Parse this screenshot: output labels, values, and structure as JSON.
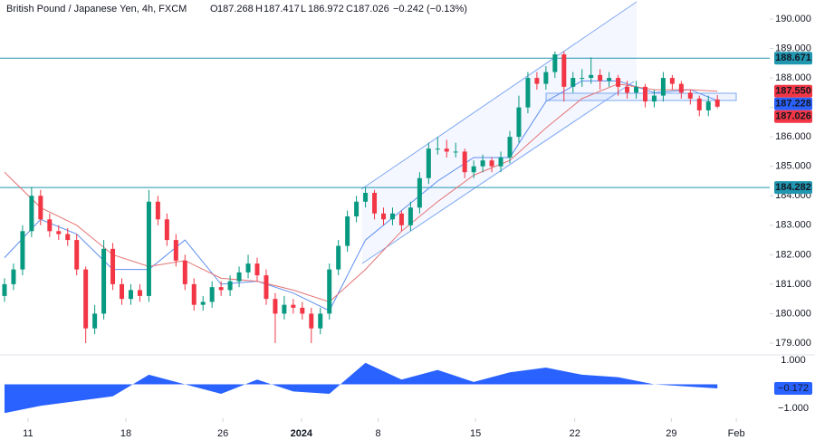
{
  "chart_data": {
    "type": "candlestick",
    "title": "British Pound / Japanese Yen, 4h, FXCM",
    "ohlc_letters": [
      "O",
      "H",
      "L",
      "C"
    ],
    "change": "−0.242 (−0.13%)",
    "up_color": "#089981",
    "down_color": "#f23645",
    "open": [
      180.6,
      181.0,
      181.5,
      182.8,
      184.0,
      183.2,
      182.8,
      182.7,
      182.5,
      181.5,
      179.5,
      180.0,
      182.2,
      181.0,
      180.5,
      180.8,
      180.6,
      183.8,
      183.2,
      182.5,
      181.8,
      181.0,
      180.3,
      180.4,
      180.9,
      180.8,
      181.1,
      181.4,
      181.7,
      181.3,
      180.5,
      180.0,
      180.3,
      180.2,
      180.0,
      179.5,
      180.0,
      181.5,
      182.3,
      183.3,
      183.8,
      184.1,
      183.4,
      183.2,
      183.4,
      183.0,
      183.6,
      184.6,
      185.6,
      185.6,
      185.5,
      185.5,
      184.8,
      185.0,
      185.2,
      185.0,
      185.3,
      186.0,
      187.0,
      188.0,
      187.8,
      188.2,
      188.8,
      187.7,
      188.0,
      188.0,
      188.1,
      187.9,
      188.0,
      187.7,
      187.5,
      187.7,
      187.2,
      187.4,
      188.0,
      187.8,
      187.5,
      187.3,
      186.9,
      187.268
    ],
    "high": [
      181.2,
      181.7,
      183.0,
      184.3,
      184.2,
      183.4,
      183.0,
      182.9,
      182.7,
      181.6,
      180.3,
      182.5,
      182.4,
      181.2,
      181.0,
      181.0,
      184.2,
      184.0,
      183.4,
      182.7,
      182.0,
      181.2,
      180.6,
      181.1,
      181.1,
      181.3,
      181.6,
      182.0,
      181.9,
      181.5,
      180.7,
      180.6,
      180.5,
      180.4,
      180.2,
      180.2,
      181.7,
      182.5,
      183.5,
      184.0,
      184.3,
      184.2,
      183.6,
      183.6,
      183.5,
      183.8,
      184.8,
      185.8,
      186.0,
      185.9,
      185.8,
      185.6,
      185.2,
      185.4,
      185.3,
      185.5,
      186.2,
      187.4,
      188.2,
      188.2,
      188.4,
      188.9,
      188.9,
      188.2,
      188.3,
      188.7,
      188.3,
      188.2,
      188.1,
      187.9,
      187.9,
      187.8,
      187.6,
      188.2,
      188.1,
      187.9,
      187.6,
      187.4,
      187.4,
      187.417
    ],
    "low": [
      180.4,
      180.8,
      181.3,
      182.6,
      183.0,
      182.6,
      182.5,
      182.3,
      181.3,
      179.0,
      179.3,
      179.8,
      180.8,
      180.3,
      180.3,
      180.4,
      180.4,
      183.0,
      182.3,
      181.6,
      180.8,
      180.1,
      180.1,
      180.2,
      180.6,
      180.6,
      180.9,
      181.2,
      181.1,
      180.3,
      179.0,
      179.8,
      180.0,
      179.8,
      179.0,
      179.3,
      179.8,
      181.3,
      182.1,
      183.1,
      183.6,
      183.2,
      183.0,
      183.0,
      182.8,
      182.8,
      183.4,
      184.4,
      185.4,
      185.3,
      185.3,
      184.6,
      184.6,
      184.8,
      184.8,
      184.8,
      185.1,
      185.8,
      186.8,
      187.6,
      187.6,
      188.0,
      187.2,
      187.5,
      187.7,
      187.8,
      187.6,
      187.7,
      187.4,
      187.3,
      187.3,
      187.0,
      187.0,
      187.2,
      187.6,
      187.3,
      187.1,
      186.7,
      186.7,
      186.972
    ],
    "close": [
      181.0,
      181.5,
      182.8,
      184.0,
      183.2,
      182.8,
      182.7,
      182.5,
      181.5,
      179.5,
      180.0,
      182.2,
      181.0,
      180.5,
      180.8,
      180.6,
      183.8,
      183.2,
      182.5,
      181.8,
      181.0,
      180.3,
      180.4,
      180.9,
      180.8,
      181.1,
      181.4,
      181.7,
      181.3,
      180.5,
      180.0,
      180.3,
      180.2,
      180.0,
      179.5,
      180.0,
      181.5,
      182.3,
      183.3,
      183.8,
      184.1,
      183.4,
      183.2,
      183.4,
      183.0,
      183.6,
      184.6,
      185.6,
      185.6,
      185.5,
      185.5,
      184.8,
      185.0,
      185.2,
      185.0,
      185.3,
      186.0,
      187.0,
      188.0,
      187.8,
      188.2,
      188.8,
      187.7,
      188.0,
      188.0,
      188.1,
      187.9,
      188.0,
      187.7,
      187.5,
      187.7,
      187.2,
      187.4,
      188.0,
      187.8,
      187.5,
      187.3,
      186.9,
      187.2,
      187.026
    ],
    "overlays": [
      {
        "color": "#5b8def",
        "x": [
          0,
          4,
          8,
          12,
          16,
          20,
          24,
          28,
          32,
          36,
          40,
          44,
          48,
          52,
          56,
          60,
          64,
          68,
          72,
          76,
          79
        ],
        "values": [
          181.9,
          183.2,
          182.7,
          181.5,
          181.5,
          182.5,
          181.0,
          181.1,
          180.7,
          180.1,
          182.5,
          183.5,
          184.5,
          185.3,
          185.3,
          187.2,
          187.9,
          187.9,
          187.5,
          187.6,
          187.228
        ]
      },
      {
        "color": "#e57373",
        "x": [
          0,
          4,
          8,
          12,
          16,
          20,
          24,
          28,
          32,
          36,
          40,
          44,
          48,
          52,
          56,
          60,
          64,
          68,
          72,
          76,
          79
        ],
        "values": [
          184.8,
          183.6,
          183.0,
          182.0,
          181.6,
          181.8,
          181.2,
          181.1,
          180.8,
          180.4,
          181.5,
          182.8,
          183.8,
          184.7,
          185.2,
          186.3,
          187.3,
          187.8,
          187.6,
          187.6,
          187.55
        ]
      }
    ],
    "levels": [
      {
        "value": 188.671,
        "color": "#2196b0"
      },
      {
        "value": 184.282,
        "color": "#2196b0"
      }
    ],
    "price_labels": [
      {
        "value": 188.671,
        "color": "#2196b0"
      },
      {
        "value": 187.55,
        "label": "187.550",
        "color": "#f23645"
      },
      {
        "value": 187.228,
        "color": "#2962ff"
      },
      {
        "value": 187.026,
        "color": "#f23645"
      },
      {
        "value": 184.282,
        "color": "#2196b0"
      }
    ],
    "xlim": [
      -0.5,
      84.8
    ],
    "xticks": [
      {
        "value": 2.6,
        "label": "11"
      },
      {
        "value": 13.45,
        "label": "18"
      },
      {
        "value": 24.2,
        "label": "26"
      },
      {
        "value": 32.9,
        "label": "2024"
      },
      {
        "value": 41.4,
        "label": "8"
      },
      {
        "value": 52.2,
        "label": "15"
      },
      {
        "value": 63.2,
        "label": "22"
      },
      {
        "value": 73.9,
        "label": "29"
      },
      {
        "value": 81.1,
        "label": "Feb"
      }
    ],
    "ylim": [
      178.6,
      190.645
    ],
    "yticks": [
      {
        "value": 179,
        "label": "179.000"
      },
      {
        "value": 180,
        "label": "180.000"
      },
      {
        "value": 181,
        "label": "181.000"
      },
      {
        "value": 182,
        "label": "182.000"
      },
      {
        "value": 183,
        "label": "183.000"
      },
      {
        "value": 184,
        "label": "184.000"
      },
      {
        "value": 185,
        "label": "185.000"
      },
      {
        "value": 186,
        "label": "186.000"
      },
      {
        "value": 187,
        "label": "187.000"
      },
      {
        "value": 188,
        "label": "188.000"
      },
      {
        "value": 189,
        "label": "189.000"
      },
      {
        "value": 190,
        "label": "190.000"
      }
    ],
    "oscillator": {
      "color": "#2962ff",
      "x": [
        0,
        4,
        8,
        12,
        16,
        20,
        24,
        28,
        32,
        36,
        40,
        44,
        48,
        52,
        56,
        60,
        64,
        68,
        72,
        76,
        79
      ],
      "values": [
        -1.2,
        -0.9,
        -0.7,
        -0.5,
        0.4,
        0.0,
        -0.4,
        0.2,
        -0.3,
        -0.4,
        0.9,
        0.2,
        0.6,
        0.1,
        0.5,
        0.7,
        0.4,
        0.3,
        0.0,
        -0.1,
        -0.172
      ],
      "last_label": "−0.172",
      "ylim": [
        -1.42,
        1.23
      ],
      "yticks": [
        {
          "value": 1,
          "label": "1.000"
        },
        {
          "value": -1,
          "label": "−1.000"
        }
      ]
    }
  }
}
